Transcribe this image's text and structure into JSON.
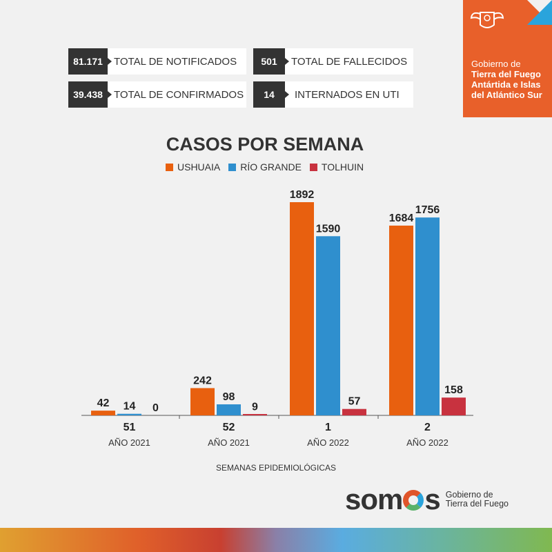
{
  "stats": [
    {
      "value": "81.171",
      "label": "TOTAL DE NOTIFICADOS"
    },
    {
      "value": "501",
      "label": "TOTAL DE FALLECIDOS"
    },
    {
      "value": "39.438",
      "label": "TOTAL DE CONFIRMADOS"
    },
    {
      "value": "14",
      "label": "INTERNADOS EN UTI"
    }
  ],
  "brand": {
    "line1": "Gobierno de",
    "line2": "Tierra del Fuego",
    "line3": "Antártida e Islas",
    "line4": "del Atlántico Sur"
  },
  "footer": {
    "logo": "somos",
    "sub1": "Gobierno de",
    "sub2": "Tierra del Fuego"
  },
  "chart_data": {
    "type": "bar",
    "title": "CASOS POR SEMANA",
    "xlabel": "SEMANAS EPIDEMIOLÓGICAS",
    "ylabel": "",
    "ylim": [
      0,
      1892
    ],
    "categories": [
      "51",
      "52",
      "1",
      "2"
    ],
    "category_sublabels": [
      "AÑO 2021",
      "AÑO 2021",
      "AÑO 2022",
      "AÑO 2022"
    ],
    "series": [
      {
        "name": "USHUAIA",
        "color": "#e8600f",
        "values": [
          42,
          242,
          1892,
          1684
        ]
      },
      {
        "name": "RÍO GRANDE",
        "color": "#2f8fce",
        "values": [
          14,
          98,
          1590,
          1756
        ]
      },
      {
        "name": "TOLHUIN",
        "color": "#c8323f",
        "values": [
          0,
          9,
          57,
          158
        ]
      }
    ]
  }
}
